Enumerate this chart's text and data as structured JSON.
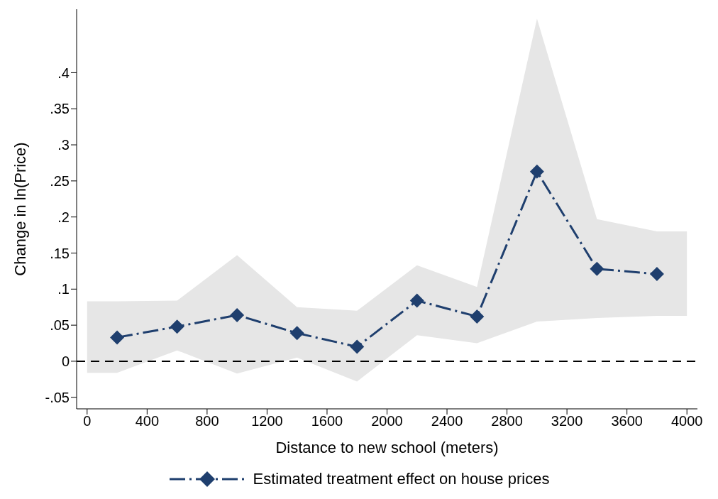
{
  "chart_data": {
    "type": "line",
    "xlabel": "Distance to new school (meters)",
    "ylabel": "Change in ln(Price)",
    "series": [
      {
        "name": "Estimated treatment effect on house prices",
        "color": "#1f3f6e",
        "x": [
          0,
          200,
          600,
          1000,
          1400,
          1800,
          2200,
          2600,
          3000,
          3400,
          3800,
          4000
        ],
        "values": [
          null,
          0.033,
          0.048,
          0.064,
          0.039,
          0.02,
          0.084,
          0.062,
          0.263,
          0.128,
          0.121,
          null
        ],
        "lower": [
          -0.016,
          -0.016,
          0.015,
          -0.017,
          0.005,
          -0.028,
          0.036,
          0.025,
          0.055,
          0.06,
          0.063,
          0.063
        ],
        "upper": [
          0.083,
          0.083,
          0.084,
          0.147,
          0.075,
          0.07,
          0.133,
          0.103,
          0.475,
          0.197,
          0.18,
          0.18
        ]
      }
    ],
    "xlim": [
      -70,
      4070
    ],
    "xticks": [
      0,
      400,
      800,
      1200,
      1600,
      2000,
      2400,
      2800,
      3200,
      3600,
      4000
    ],
    "ylim": [
      -0.066,
      0.488
    ],
    "yticks": [
      {
        "value": -0.05,
        "label": "-.05"
      },
      0,
      {
        "value": 0.05,
        "label": ".05"
      },
      {
        "value": 0.1,
        "label": ".1"
      },
      {
        "value": 0.15,
        "label": ".15"
      },
      {
        "value": 0.2,
        "label": ".2"
      },
      {
        "value": 0.25,
        "label": ".25"
      },
      {
        "value": 0.3,
        "label": ".3"
      },
      {
        "value": 0.35,
        "label": ".35"
      },
      {
        "value": 0.4,
        "label": ".4"
      }
    ],
    "ref_lines": [
      {
        "axis": "y",
        "value": 0,
        "color": "#000000",
        "line_style": "dashed"
      }
    ],
    "grid": false,
    "legend": "bottom",
    "marker": "diamond",
    "line_style": "dashed"
  }
}
